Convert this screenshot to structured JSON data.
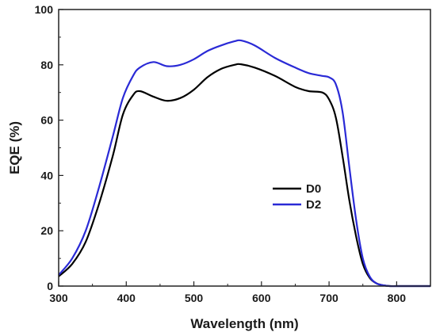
{
  "chart_data": {
    "type": "line",
    "title": "",
    "xlabel": "Wavelength (nm)",
    "ylabel": "EQE (%)",
    "xlim": [
      300,
      850
    ],
    "ylim": [
      0,
      100
    ],
    "xticks": [
      "300",
      "400",
      "500",
      "600",
      "700",
      "800"
    ],
    "yticks": [
      "0",
      "20",
      "40",
      "60",
      "80",
      "100"
    ],
    "grid": false,
    "legend_position": "center-right",
    "series": [
      {
        "name": "D0",
        "color": "#000000",
        "x": [
          300,
          320,
          340,
          360,
          380,
          395,
          410,
          420,
          440,
          460,
          480,
          500,
          520,
          540,
          560,
          570,
          590,
          620,
          650,
          670,
          690,
          700,
          710,
          720,
          730,
          740,
          750,
          760,
          770,
          780,
          790,
          800,
          820,
          850
        ],
        "y": [
          3.5,
          8,
          16,
          30,
          47,
          62,
          69,
          70.5,
          68.5,
          67,
          68,
          71,
          75.5,
          78.5,
          80,
          80.2,
          79,
          76,
          72,
          70.5,
          70,
          67.5,
          61,
          47,
          31,
          18,
          8,
          3,
          1,
          0.3,
          0,
          0,
          0,
          0
        ]
      },
      {
        "name": "D2",
        "color": "#2a2ad6",
        "x": [
          300,
          320,
          340,
          360,
          380,
          395,
          410,
          420,
          440,
          460,
          480,
          500,
          520,
          540,
          560,
          570,
          590,
          620,
          650,
          670,
          690,
          700,
          710,
          720,
          730,
          740,
          750,
          760,
          770,
          780,
          790,
          800,
          820,
          850
        ],
        "y": [
          4,
          10,
          20,
          36,
          54,
          68,
          76,
          79,
          81,
          79.5,
          80,
          82,
          85,
          87,
          88.5,
          88.8,
          87,
          82.5,
          79,
          77,
          76,
          75.5,
          73,
          63,
          43,
          24,
          10,
          3.5,
          1,
          0.3,
          0,
          0,
          0,
          0
        ]
      }
    ]
  }
}
